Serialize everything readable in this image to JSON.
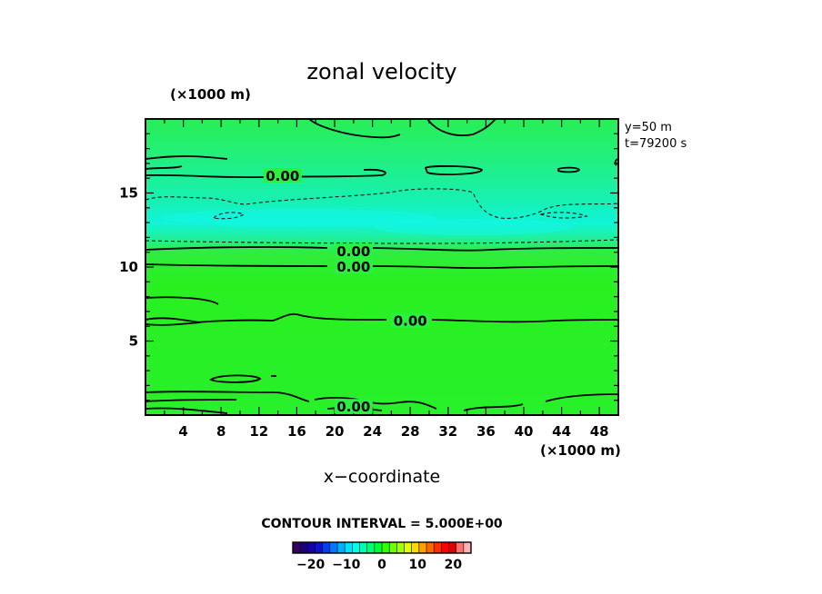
{
  "chart_data": {
    "type": "heatmap",
    "title": "zonal velocity",
    "xlabel": "x−coordinate",
    "y_unit": "(×1000 m)",
    "x_unit": "(×1000 m)",
    "annotations": [
      "y=50 m",
      "t=79200 s"
    ],
    "xlim": [
      0,
      50
    ],
    "ylim": [
      0,
      20
    ],
    "x_ticks": [
      4,
      8,
      12,
      16,
      20,
      24,
      28,
      32,
      36,
      40,
      44,
      48
    ],
    "y_ticks": [
      5,
      10,
      15
    ],
    "contour_interval_text": "CONTOUR INTERVAL = 5.000E+00",
    "contour_labels": [
      {
        "text": "0.00",
        "x": 14.5,
        "y": 16.2
      },
      {
        "text": "0.00",
        "x": 22,
        "y": 11.1
      },
      {
        "text": "0.00",
        "x": 22,
        "y": 10.05
      },
      {
        "text": "0.00",
        "x": 28,
        "y": 6.4
      },
      {
        "text": "0.00",
        "x": 22,
        "y": 0.6
      }
    ],
    "bands": [
      {
        "y_low": 0,
        "y_high": 10,
        "value": 0.5
      },
      {
        "y_low": 10,
        "y_high": 11.5,
        "value": 1.0
      },
      {
        "y_low": 11.5,
        "y_high": 15,
        "value": -2.5
      },
      {
        "y_low": 15,
        "y_high": 20,
        "value": 0.5
      }
    ],
    "colorbar": {
      "ticks": [
        "−20",
        "−10",
        "0",
        "10",
        "20"
      ],
      "tick_values": [
        -20,
        -10,
        0,
        10,
        20
      ],
      "range": [
        -25,
        25
      ],
      "colors": [
        "#3a0060",
        "#1e007a",
        "#1400a8",
        "#0a14d0",
        "#0040f0",
        "#0078ff",
        "#00b0ff",
        "#00e0ff",
        "#00ffe8",
        "#00ffb0",
        "#00ff70",
        "#00ff30",
        "#30ff00",
        "#70ff00",
        "#a8ff00",
        "#e0ff00",
        "#ffd800",
        "#ffa000",
        "#ff6800",
        "#ff3000",
        "#ff0000",
        "#e00000",
        "#ff7070",
        "#ffb0b0"
      ]
    }
  }
}
